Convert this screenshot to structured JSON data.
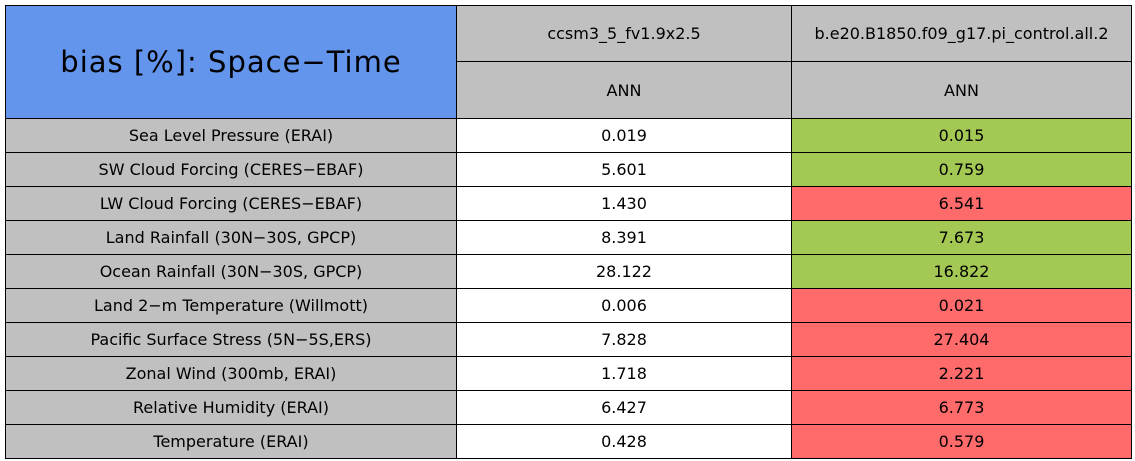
{
  "header": {
    "title": "bias [%]: Space−Time",
    "columns": [
      {
        "case": "ccsm3_5_fv1.9x2.5",
        "season": "ANN"
      },
      {
        "case": "b.e20.B1850.f09_g17.pi_control.all.2",
        "season": "ANN"
      }
    ]
  },
  "table": {
    "rows": [
      {
        "label": "Sea Level Pressure (ERAI)",
        "cells": [
          {
            "text": "0.019",
            "color": "#ffffff"
          },
          {
            "text": "0.015",
            "color": "#a3c853"
          }
        ]
      },
      {
        "label": "SW Cloud Forcing (CERES−EBAF)",
        "cells": [
          {
            "text": "5.601",
            "color": "#ffffff"
          },
          {
            "text": "0.759",
            "color": "#a3c853"
          }
        ]
      },
      {
        "label": "LW Cloud Forcing (CERES−EBAF)",
        "cells": [
          {
            "text": "1.430",
            "color": "#ffffff"
          },
          {
            "text": "6.541",
            "color": "#ff6a6a"
          }
        ]
      },
      {
        "label": "Land Rainfall (30N−30S, GPCP)",
        "cells": [
          {
            "text": "8.391",
            "color": "#ffffff"
          },
          {
            "text": "7.673",
            "color": "#a3c853"
          }
        ]
      },
      {
        "label": "Ocean Rainfall (30N−30S, GPCP)",
        "cells": [
          {
            "text": "28.122",
            "color": "#ffffff"
          },
          {
            "text": "16.822",
            "color": "#a3c853"
          }
        ]
      },
      {
        "label": "Land 2−m Temperature (Willmott)",
        "cells": [
          {
            "text": "0.006",
            "color": "#ffffff"
          },
          {
            "text": "0.021",
            "color": "#ff6a6a"
          }
        ]
      },
      {
        "label": "Pacific Surface Stress (5N−5S,ERS)",
        "cells": [
          {
            "text": "7.828",
            "color": "#ffffff"
          },
          {
            "text": "27.404",
            "color": "#ff6a6a"
          }
        ]
      },
      {
        "label": "Zonal Wind (300mb, ERAI)",
        "cells": [
          {
            "text": "1.718",
            "color": "#ffffff"
          },
          {
            "text": "2.221",
            "color": "#ff6a6a"
          }
        ]
      },
      {
        "label": "Relative Humidity (ERAI)",
        "cells": [
          {
            "text": "6.427",
            "color": "#ffffff"
          },
          {
            "text": "6.773",
            "color": "#ff6a6a"
          }
        ]
      },
      {
        "label": "Temperature (ERAI)",
        "cells": [
          {
            "text": "0.428",
            "color": "#ffffff"
          },
          {
            "text": "0.579",
            "color": "#ff6a6a"
          }
        ]
      }
    ]
  }
}
